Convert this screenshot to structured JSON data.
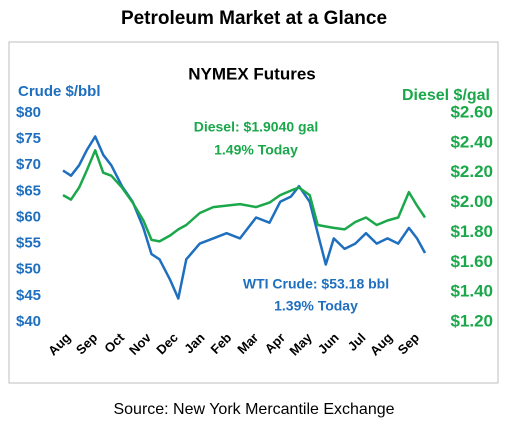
{
  "title": "Petroleum Market at a Glance",
  "source": "Source: New York Mercantile Exchange",
  "chart_data": {
    "type": "line",
    "title": "NYMEX Futures",
    "ylabel": "Crude $/bbl",
    "y2label": "Diesel $/gal",
    "x": [
      0,
      0.3,
      0.6,
      0.9,
      1.2,
      1.5,
      1.8,
      2.2,
      2.6,
      3.0,
      3.3,
      3.6,
      4.0,
      4.3,
      4.6,
      5.1,
      5.6,
      6.1,
      6.6,
      7.2,
      7.7,
      8.1,
      8.5,
      8.8,
      9.2,
      9.5,
      9.8,
      10.1,
      10.5,
      10.9,
      11.3,
      11.7,
      12.1,
      12.5,
      12.9,
      13.2,
      13.5
    ],
    "xlim": [
      0,
      13.5
    ],
    "xticks": [
      {
        "value": 0,
        "label": "Aug"
      },
      {
        "value": 1,
        "label": "Sep"
      },
      {
        "value": 2,
        "label": "Oct"
      },
      {
        "value": 3,
        "label": "Nov"
      },
      {
        "value": 4,
        "label": "Dec"
      },
      {
        "value": 5,
        "label": "Jan"
      },
      {
        "value": 6,
        "label": "Feb"
      },
      {
        "value": 7,
        "label": "Mar"
      },
      {
        "value": 8,
        "label": "Apr"
      },
      {
        "value": 9,
        "label": "May"
      },
      {
        "value": 10,
        "label": "Jun"
      },
      {
        "value": 11,
        "label": "Jul"
      },
      {
        "value": 12,
        "label": "Aug"
      },
      {
        "value": 13,
        "label": "Sep"
      }
    ],
    "ylim": [
      40,
      80
    ],
    "yticks": [
      {
        "value": 40,
        "label": "$40"
      },
      {
        "value": 45,
        "label": "$45"
      },
      {
        "value": 50,
        "label": "$50"
      },
      {
        "value": 55,
        "label": "$55"
      },
      {
        "value": 60,
        "label": "$60"
      },
      {
        "value": 65,
        "label": "$65"
      },
      {
        "value": 70,
        "label": "$70"
      },
      {
        "value": 75,
        "label": "$75"
      },
      {
        "value": 80,
        "label": "$80"
      }
    ],
    "y2lim": [
      1.2,
      2.6
    ],
    "y2ticks": [
      {
        "value": 1.2,
        "label": "$1.20"
      },
      {
        "value": 1.4,
        "label": "$1.40"
      },
      {
        "value": 1.6,
        "label": "$1.60"
      },
      {
        "value": 1.8,
        "label": "$1.80"
      },
      {
        "value": 2.0,
        "label": "$2.00"
      },
      {
        "value": 2.2,
        "label": "$2.20"
      },
      {
        "value": 2.4,
        "label": "$2.40"
      },
      {
        "value": 2.6,
        "label": "$2.60"
      }
    ],
    "series": [
      {
        "name": "WTI Crude",
        "color": "#1f6fbf",
        "axis": "y",
        "values": [
          69,
          68,
          70,
          73,
          75.5,
          72,
          70,
          66,
          63,
          58,
          53,
          52,
          48,
          44.5,
          52,
          55,
          56,
          57,
          56,
          60,
          59,
          63,
          64,
          66,
          63,
          57,
          51,
          56,
          54,
          55,
          57,
          55,
          56,
          55,
          58,
          56,
          53.2
        ]
      },
      {
        "name": "Diesel",
        "color": "#1aa84a",
        "axis": "y2",
        "values": [
          2.05,
          2.02,
          2.1,
          2.22,
          2.35,
          2.2,
          2.18,
          2.1,
          2.0,
          1.88,
          1.75,
          1.74,
          1.78,
          1.82,
          1.85,
          1.93,
          1.97,
          1.98,
          1.99,
          1.97,
          2.0,
          2.05,
          2.08,
          2.1,
          2.05,
          1.85,
          1.84,
          1.83,
          1.82,
          1.87,
          1.9,
          1.85,
          1.88,
          1.9,
          2.07,
          1.98,
          1.9
        ]
      }
    ],
    "annotations": [
      "Diesel: $1.9040 gal",
      "1.49% Today",
      "WTI Crude: $53.18 bbl",
      "1.39% Today"
    ]
  }
}
